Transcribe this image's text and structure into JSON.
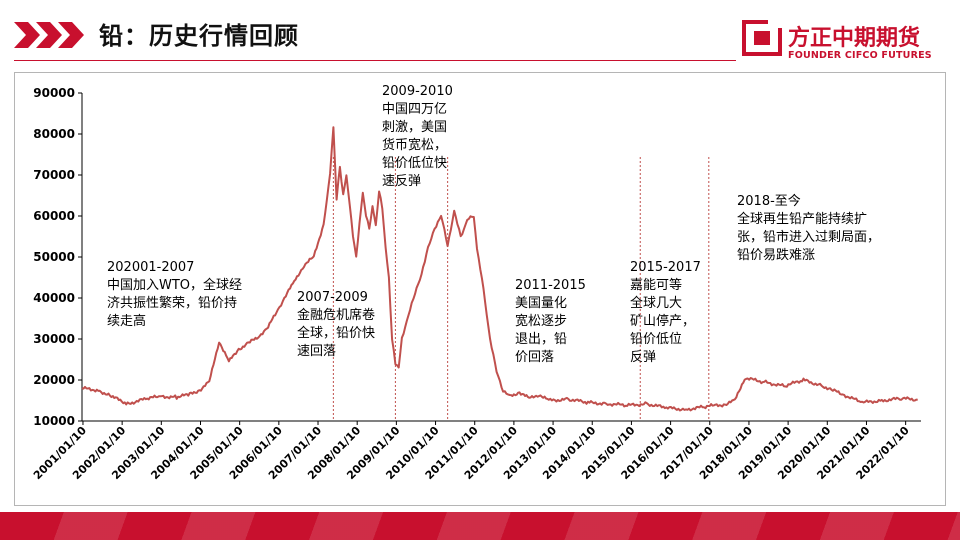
{
  "header": {
    "title": "铅：历史行情回顾"
  },
  "brand": {
    "name_cn": "方正中期期货",
    "name_en": "FOUNDER CIFCO FUTURES",
    "color": "#c8102e"
  },
  "annotations": [
    {
      "id": "ann-2001",
      "text": "202001-2007\n中国加入WTO，全球经\n济共振性繁荣，铅价持\n续走高"
    },
    {
      "id": "ann-2007",
      "text": "2007-2009\n金融危机席卷\n全球，铅价快\n速回落"
    },
    {
      "id": "ann-2009",
      "text": "2009-2010\n中国四万亿\n刺激，美国\n货币宽松，\n铅价低位快\n速反弹"
    },
    {
      "id": "ann-2011",
      "text": "2011-2015\n美国量化\n宽松逐步\n退出，铅\n价回落"
    },
    {
      "id": "ann-2015",
      "text": "2015-2017\n嘉能可等\n全球几大\n矿山停产，\n铅价低位\n反弹"
    },
    {
      "id": "ann-2018",
      "text": "2018-至今\n全球再生铅产能持续扩\n张，铅市进入过剩局面，\n铅价易跌难涨"
    }
  ],
  "chart_data": {
    "type": "line",
    "title": "",
    "xlabel": "",
    "ylabel": "",
    "ylim": [
      10000,
      90000
    ],
    "y_ticks": [
      "10000",
      "20000",
      "30000",
      "40000",
      "50000",
      "60000",
      "70000",
      "80000",
      "90000"
    ],
    "x_ticks": [
      "2001/01/10",
      "2002/01/10",
      "2003/01/10",
      "2004/01/10",
      "2005/01/10",
      "2006/01/10",
      "2007/01/10",
      "2008/01/10",
      "2009/01/10",
      "2010/01/10",
      "2011/01/10",
      "2012/01/10",
      "2013/01/10",
      "2014/01/10",
      "2015/01/10",
      "2016/01/10",
      "2017/01/10",
      "2018/01/10",
      "2019/01/10",
      "2020/01/10",
      "2021/01/10",
      "2022/01/10"
    ],
    "xlim": [
      "2001/01/01",
      "2022/06/01"
    ],
    "series_color": "#c0504d",
    "divider_dates": [
      "2007/06/01",
      "2009/01/01",
      "2010/05/01",
      "2015/04/01",
      "2017/01/01"
    ],
    "series": [
      {
        "x": [
          "2001/01",
          "2001/06",
          "2001/10",
          "2002/03",
          "2002/09",
          "2003/01",
          "2003/06",
          "2003/10",
          "2004/01",
          "2004/04",
          "2004/07",
          "2004/10",
          "2005/01",
          "2005/04",
          "2005/07",
          "2005/10",
          "2006/01",
          "2006/03",
          "2006/06",
          "2006/09",
          "2006/12",
          "2007/03",
          "2007/05",
          "2007/06",
          "2007/07",
          "2007/08",
          "2007/09",
          "2007/10",
          "2007/11",
          "2007/12",
          "2008/01",
          "2008/02",
          "2008/03",
          "2008/04",
          "2008/05",
          "2008/06",
          "2008/07",
          "2008/08",
          "2008/09",
          "2008/10",
          "2008/11",
          "2008/12",
          "2009/01",
          "2009/02",
          "2009/03",
          "2009/05",
          "2009/07",
          "2009/09",
          "2009/11",
          "2010/01",
          "2010/03",
          "2010/05",
          "2010/07",
          "2010/09",
          "2010/11",
          "2011/01",
          "2011/02",
          "2011/04",
          "2011/06",
          "2011/08",
          "2011/10",
          "2011/12",
          "2012/03",
          "2012/06",
          "2012/09",
          "2012/12",
          "2013/06",
          "2013/12",
          "2014/06",
          "2014/12",
          "2015/06",
          "2015/12",
          "2016/06",
          "2016/12",
          "2017/03",
          "2017/06",
          "2017/09",
          "2017/12",
          "2018/06",
          "2018/12",
          "2019/06",
          "2019/12",
          "2020/03",
          "2020/06",
          "2020/12",
          "2021/06",
          "2021/12",
          "2022/05"
        ],
        "y": [
          18000,
          17500,
          16000,
          14200,
          15500,
          16000,
          15800,
          16500,
          17500,
          19500,
          29500,
          24500,
          27500,
          29000,
          30500,
          33000,
          37000,
          40000,
          44000,
          48000,
          50000,
          58000,
          70000,
          82000,
          64000,
          72000,
          65000,
          70000,
          63000,
          55000,
          50000,
          58000,
          66000,
          60000,
          57000,
          62000,
          58000,
          66000,
          62000,
          52000,
          45000,
          30000,
          24000,
          23000,
          30000,
          36000,
          41000,
          46000,
          52000,
          57000,
          60000,
          53000,
          61000,
          55000,
          59000,
          60000,
          52000,
          42000,
          30000,
          22000,
          17500,
          16000,
          17000,
          15500,
          16500,
          15000,
          15300,
          14500,
          14200,
          13800,
          14200,
          13200,
          12800,
          13500,
          13800,
          14000,
          15000,
          20500,
          19500,
          18500,
          20000,
          18500,
          17500,
          16500,
          14500,
          15000,
          15500,
          15200
        ]
      }
    ]
  }
}
